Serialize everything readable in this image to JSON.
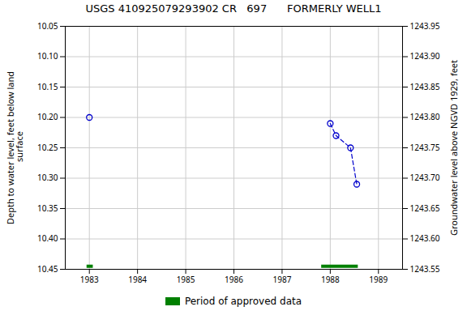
{
  "chart_data": {
    "type": "scatter",
    "title": "USGS 410925079293902 CR   697      FORMERLY WELL1",
    "ylabel": "Depth to water level, feet below land\n surface",
    "y2label": "Groundwater level above NGVD 1929, feet",
    "xlim": [
      1982.5,
      1989.5
    ],
    "xticks": [
      1983,
      1984,
      1985,
      1986,
      1987,
      1988,
      1989
    ],
    "ylim": [
      10.45,
      10.05
    ],
    "yticks": [
      10.05,
      {
        "value": 10.1,
        "label": "10.10"
      },
      10.15,
      {
        "value": 10.2,
        "label": "10.20"
      },
      10.25,
      {
        "value": 10.3,
        "label": "10.30"
      },
      10.35,
      {
        "value": 10.4,
        "label": "10.40"
      },
      10.45
    ],
    "y2lim": [
      1243.55,
      1243.95
    ],
    "y2ticks": [
      1243.55,
      {
        "value": 1243.6,
        "label": "1243.60"
      },
      1243.65,
      {
        "value": 1243.7,
        "label": "1243.70"
      },
      1243.75,
      {
        "value": 1243.8,
        "label": "1243.80"
      },
      1243.85,
      {
        "value": 1243.9,
        "label": "1243.90"
      },
      1243.95
    ],
    "grid": true,
    "legend": "bottom",
    "series": [
      {
        "type": "line",
        "color": "#0000cc",
        "line_style": "dashed",
        "marker": "none",
        "x": [
          1988.0,
          1988.12,
          1988.42,
          1988.55
        ],
        "values": [
          10.21,
          10.23,
          10.25,
          10.31
        ]
      },
      {
        "type": "scatter",
        "color": "#0000cc",
        "marker": "open_circle",
        "x": [
          1983.0,
          1988.0,
          1988.12,
          1988.42,
          1988.55
        ],
        "values": [
          10.2,
          10.21,
          10.23,
          10.25,
          10.31
        ]
      },
      {
        "name": "Period of approved data",
        "type": "range",
        "color": "#008000",
        "x_start": [
          1982.95,
          1987.82
        ],
        "x_end": [
          1983.08,
          1988.58
        ],
        "values": [
          10.445,
          10.445
        ]
      }
    ]
  }
}
